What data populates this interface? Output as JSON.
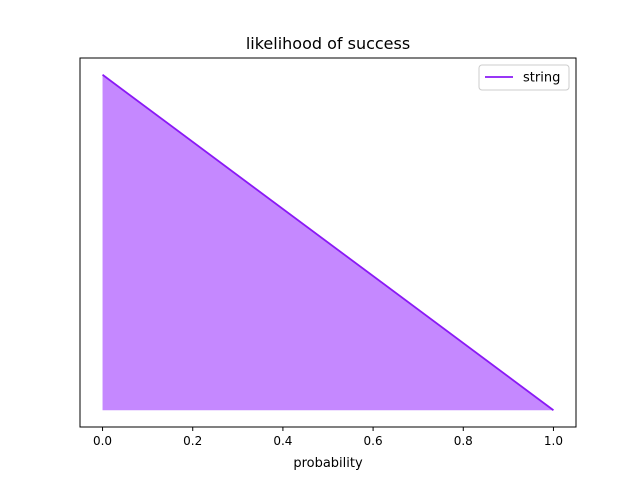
{
  "chart_data": {
    "type": "area",
    "title": "likelihood of success",
    "xlabel": "probability",
    "ylabel": "",
    "x_ticks": [
      "0.0",
      "0.2",
      "0.4",
      "0.6",
      "0.8",
      "1.0"
    ],
    "xlim": [
      -0.05,
      1.05
    ],
    "ylim": [
      -0.05,
      1.05
    ],
    "y_ticks_visible": false,
    "grid": false,
    "legend": "top-right",
    "series": [
      {
        "name": "string",
        "x": [
          0.0,
          1.0
        ],
        "y": [
          1.0,
          0.0
        ],
        "baseline": 0.0,
        "line_color": "#8a19f5",
        "fill_color": "#bf7bff"
      }
    ]
  }
}
